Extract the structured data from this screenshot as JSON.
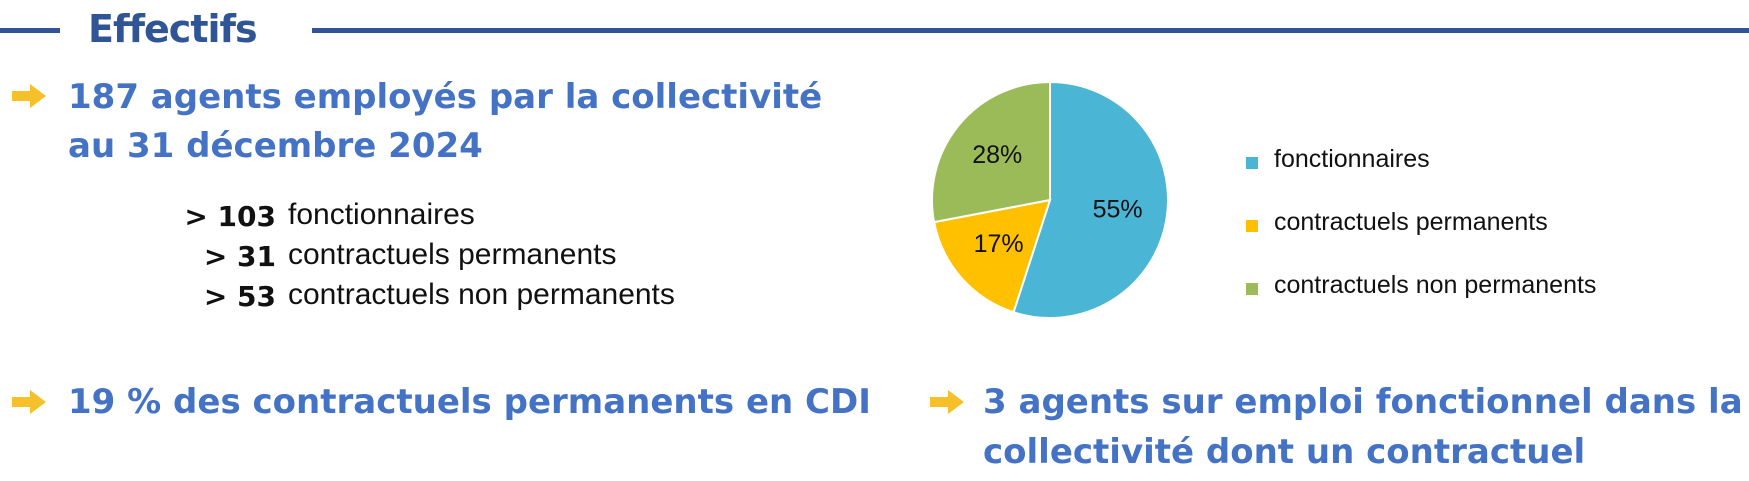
{
  "section": {
    "title": "Effectifs"
  },
  "headline": {
    "line1": "187 agents employés par la collectivité",
    "line2": "au 31 décembre 2024"
  },
  "breakdown": [
    {
      "count": "> 103",
      "label": "fonctionnaires"
    },
    {
      "count": "> 31",
      "label": "contractuels permanents"
    },
    {
      "count": "> 53",
      "label": "contractuels non permanents"
    }
  ],
  "bottom_left": {
    "text": "19 % des contractuels permanents en CDI"
  },
  "bottom_right": {
    "line1": "3 agents sur emploi fonctionnel dans la",
    "line2": "collectivité dont un contractuel"
  },
  "colors": {
    "title_blue": "#2f5597",
    "text_blue": "#4472c4",
    "arrow_yellow": "#f5c02a",
    "fonctionnaires": "#4bb5d6",
    "contractuels_permanents": "#ffc000",
    "contractuels_non_permanents": "#9bbb59"
  },
  "icons": {
    "bullet": "right-arrow-icon"
  },
  "chart_data": {
    "type": "pie",
    "categories": [
      "fonctionnaires",
      "contractuels permanents",
      "contractuels non permanents"
    ],
    "values": [
      55,
      17,
      28
    ],
    "labels": [
      "55%",
      "17%",
      "28%"
    ],
    "colors": [
      "#4bb5d6",
      "#ffc000",
      "#9bbb59"
    ],
    "legend_position": "right",
    "start_angle_deg": 0,
    "direction": "clockwise"
  }
}
